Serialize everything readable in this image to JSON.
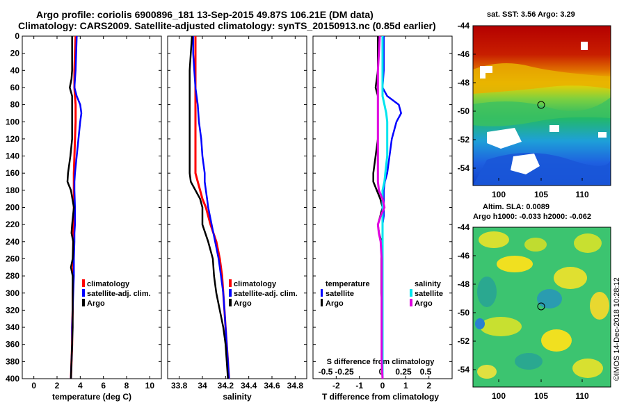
{
  "title_line1": "Argo profile: coriolis 6900896_181 13-Sep-2015 49.87S 106.21E (DM data)",
  "title_line2": "Climatology: CARS2009. Satellite-adjusted climatology: synTS_20150913.nc (0.85d earlier)",
  "colors": {
    "climatology": "#ff0000",
    "satellite_adj": "#0000ff",
    "argo": "#000000",
    "sat_salinity": "#00e5ee",
    "argo_salinity_diff": "#e000e0"
  },
  "legend": {
    "climatology": "climatology",
    "satellite_adj": "satellite-adj. clim.",
    "argo": "Argo"
  },
  "diff_legend": {
    "temperature_header": "temperature",
    "salinity_header": "salinity",
    "satellite": "satellite",
    "argo": "Argo"
  },
  "panels": {
    "temperature": {
      "xlabel": "temperature (deg C)"
    },
    "salinity": {
      "xlabel": "salinity"
    },
    "difference": {
      "xlabel": "T difference from climatology",
      "top_label": "S difference from climatology"
    }
  },
  "maps": {
    "sst": {
      "title": "sat. SST: 3.56 Argo: 3.29",
      "lat_ticks": [
        "-44",
        "-46",
        "-48",
        "-50",
        "-52",
        "-54"
      ],
      "lon_ticks": [
        "100",
        "105",
        "110"
      ]
    },
    "sla": {
      "title1": "Altim. SLA: 0.0089",
      "title2": "Argo h1000: -0.033 h2000: -0.062",
      "lat_ticks": [
        "-44",
        "-46",
        "-48",
        "-50",
        "-52",
        "-54"
      ],
      "lon_ticks": [
        "100",
        "105",
        "110"
      ]
    },
    "float_position": {
      "lat": -49.87,
      "lon": 106.21
    }
  },
  "credit": "©IMOS 14-Dec-2018 10:28:12",
  "chart_data": [
    {
      "type": "line",
      "name": "temperature",
      "title": "",
      "xlabel": "temperature (deg C)",
      "ylabel": "",
      "xlim": [
        -1,
        11
      ],
      "ylim": [
        400,
        0
      ],
      "x_ticks": [
        "0",
        "2",
        "4",
        "6",
        "8",
        "10"
      ],
      "y_ticks": [
        "0",
        "20",
        "40",
        "60",
        "80",
        "100",
        "120",
        "140",
        "160",
        "180",
        "200",
        "220",
        "240",
        "260",
        "280",
        "300",
        "320",
        "340",
        "360",
        "380",
        "400"
      ],
      "depth": [
        0,
        20,
        40,
        50,
        60,
        70,
        80,
        90,
        100,
        120,
        140,
        160,
        170,
        180,
        200,
        220,
        230,
        240,
        260,
        270,
        280,
        300,
        320,
        340,
        360,
        380,
        400
      ],
      "series": [
        {
          "name": "climatology",
          "values": [
            3.6,
            3.55,
            3.5,
            3.5,
            3.5,
            3.55,
            3.6,
            3.6,
            3.6,
            3.55,
            3.5,
            3.45,
            3.45,
            3.45,
            3.45,
            3.45,
            3.4,
            3.4,
            3.4,
            3.4,
            3.4,
            3.35,
            3.35,
            3.3,
            3.3,
            3.25,
            3.2
          ]
        },
        {
          "name": "satellite-adj. clim.",
          "values": [
            3.7,
            3.65,
            3.6,
            3.55,
            3.5,
            3.7,
            4.0,
            4.1,
            4.0,
            3.85,
            3.7,
            3.55,
            3.5,
            3.5,
            3.55,
            3.55,
            3.5,
            3.5,
            3.45,
            3.45,
            3.45,
            3.4,
            3.35,
            3.3,
            3.3,
            3.25,
            3.2
          ]
        },
        {
          "name": "Argo",
          "values": [
            3.3,
            3.3,
            3.3,
            3.25,
            3.1,
            3.3,
            3.3,
            3.3,
            3.3,
            3.3,
            3.15,
            2.95,
            2.9,
            3.2,
            3.45,
            3.3,
            3.25,
            3.4,
            3.35,
            3.2,
            3.35,
            3.35,
            3.35,
            3.35,
            3.3,
            3.25,
            3.2
          ]
        }
      ]
    },
    {
      "type": "line",
      "name": "salinity",
      "title": "",
      "xlabel": "salinity",
      "ylabel": "",
      "xlim": [
        33.7,
        34.9
      ],
      "ylim": [
        400,
        0
      ],
      "x_ticks": [
        "33.8",
        "34",
        "34.2",
        "34.4",
        "34.6",
        "34.8"
      ],
      "depth": [
        0,
        20,
        40,
        60,
        80,
        100,
        120,
        140,
        160,
        170,
        180,
        190,
        200,
        220,
        240,
        260,
        280,
        300,
        320,
        340,
        360,
        380,
        400
      ],
      "series": [
        {
          "name": "climatology",
          "values": [
            33.94,
            33.94,
            33.94,
            33.94,
            33.94,
            33.94,
            33.94,
            33.94,
            33.94,
            33.96,
            33.98,
            34.0,
            34.03,
            34.07,
            34.12,
            34.15,
            34.17,
            34.18,
            34.19,
            34.2,
            34.21,
            34.22,
            34.23
          ]
        },
        {
          "name": "satellite-adj. clim.",
          "values": [
            33.92,
            33.92,
            33.93,
            33.94,
            33.96,
            33.97,
            33.99,
            34.0,
            34.02,
            34.02,
            34.03,
            34.04,
            34.05,
            34.08,
            34.11,
            34.14,
            34.16,
            34.18,
            34.19,
            34.2,
            34.21,
            34.22,
            34.23
          ]
        },
        {
          "name": "Argo",
          "values": [
            33.91,
            33.9,
            33.89,
            33.89,
            33.89,
            33.89,
            33.89,
            33.89,
            33.89,
            33.9,
            33.94,
            33.98,
            34.0,
            34.0,
            34.05,
            34.09,
            34.1,
            34.12,
            34.15,
            34.18,
            34.2,
            34.21,
            34.22
          ]
        }
      ]
    },
    {
      "type": "line",
      "name": "difference",
      "title": "",
      "xlabel": "T difference from climatology",
      "top_label": "S difference from climatology",
      "xlim": [
        -3,
        3
      ],
      "ylim": [
        400,
        0
      ],
      "x_ticks": [
        "-2",
        "-1",
        "0",
        "1",
        "2"
      ],
      "s_ticks": [
        "-0.5",
        "-0.25",
        "0",
        "0.25",
        "0.5"
      ],
      "depth": [
        0,
        20,
        40,
        60,
        70,
        80,
        90,
        100,
        120,
        140,
        160,
        170,
        180,
        190,
        200,
        210,
        220,
        230,
        240,
        260,
        280,
        300,
        320,
        340,
        360,
        380,
        400
      ],
      "series": [
        {
          "name": "temperature satellite",
          "values": [
            0.05,
            0.05,
            0.05,
            0.0,
            0.2,
            0.7,
            0.8,
            0.6,
            0.4,
            0.3,
            0.2,
            0.1,
            0.05,
            0.05,
            0.05,
            0.05,
            0.0,
            0.0,
            0.0,
            0.0,
            0.0,
            0.0,
            0.0,
            0.0,
            0.0,
            0.0,
            0.0
          ]
        },
        {
          "name": "temperature Argo",
          "values": [
            -0.2,
            -0.2,
            -0.2,
            -0.3,
            -0.2,
            -0.2,
            -0.2,
            -0.2,
            -0.2,
            -0.3,
            -0.4,
            -0.4,
            -0.25,
            -0.1,
            0.0,
            -0.1,
            -0.2,
            -0.15,
            -0.05,
            -0.05,
            -0.05,
            -0.05,
            0.0,
            0.0,
            0.0,
            0.0,
            0.0
          ]
        },
        {
          "name": "salinity satellite",
          "values": [
            0.0,
            0.0,
            0.0,
            0.0,
            0.0,
            0.02,
            0.04,
            0.05,
            0.05,
            0.05,
            0.03,
            0.02,
            0.0,
            0.0,
            0.0,
            0.0,
            0.0,
            0.0,
            0.0,
            0.0,
            0.0,
            0.0,
            0.0,
            0.0,
            0.0,
            0.0,
            0.0
          ]
        },
        {
          "name": "salinity Argo",
          "values": [
            -0.03,
            -0.04,
            -0.05,
            -0.05,
            -0.05,
            -0.05,
            -0.05,
            -0.05,
            -0.05,
            -0.05,
            -0.05,
            -0.05,
            -0.04,
            0.0,
            0.02,
            -0.02,
            -0.05,
            -0.04,
            -0.02,
            -0.01,
            -0.01,
            -0.01,
            -0.01,
            -0.01,
            -0.01,
            -0.01,
            0.0
          ]
        }
      ]
    }
  ]
}
